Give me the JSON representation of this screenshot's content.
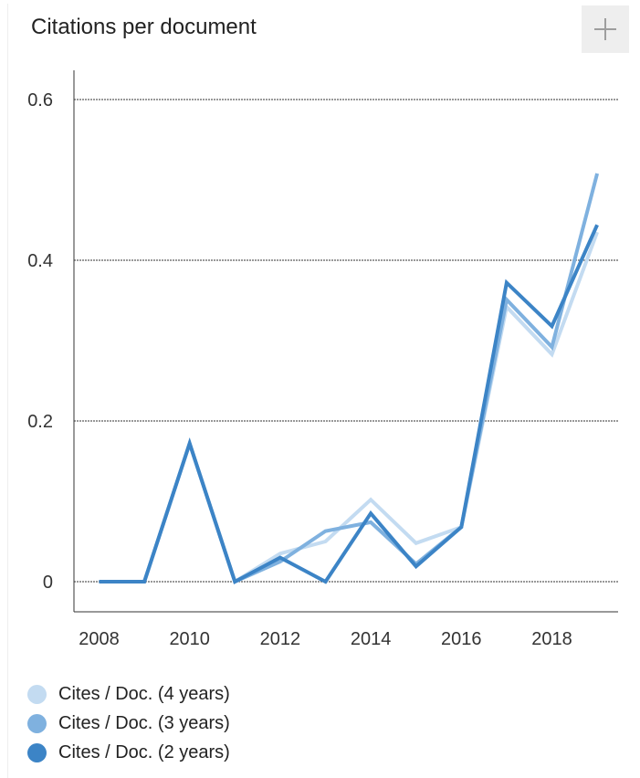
{
  "header": {
    "title": "Citations per document"
  },
  "colors": {
    "four_years": "#c3dbf1",
    "three_years": "#7fb1df",
    "two_years": "#3c84c6"
  },
  "chart_data": {
    "type": "line",
    "title": "Citations per document",
    "xlabel": "",
    "ylabel": "",
    "xlim": [
      2008,
      2019
    ],
    "ylim": [
      0,
      0.6
    ],
    "x_ticks": [
      "2008",
      "2010",
      "2012",
      "2014",
      "2016",
      "2018"
    ],
    "y_ticks": [
      "0",
      "0.2",
      "0.4",
      "0.6"
    ],
    "grid": true,
    "legend_position": "bottom",
    "x": [
      2008,
      2009,
      2010,
      2011,
      2012,
      2013,
      2014,
      2015,
      2016,
      2017,
      2018,
      2019
    ],
    "series": [
      {
        "name": "Cites / Doc. (4 years)",
        "color": "#c3dbf1",
        "values": [
          0,
          0,
          0.172,
          0,
          0.035,
          0.05,
          0.102,
          0.048,
          0.068,
          0.342,
          0.283,
          0.435
        ]
      },
      {
        "name": "Cites / Doc. (3 years)",
        "color": "#7fb1df",
        "values": [
          0,
          0,
          0.172,
          0,
          0.025,
          0.063,
          0.074,
          0.022,
          0.068,
          0.351,
          0.292,
          0.508
        ]
      },
      {
        "name": "Cites / Doc. (2 years)",
        "color": "#3c84c6",
        "values": [
          0,
          0,
          0.172,
          0,
          0.03,
          0,
          0.085,
          0.019,
          0.068,
          0.372,
          0.318,
          0.444
        ]
      }
    ]
  }
}
